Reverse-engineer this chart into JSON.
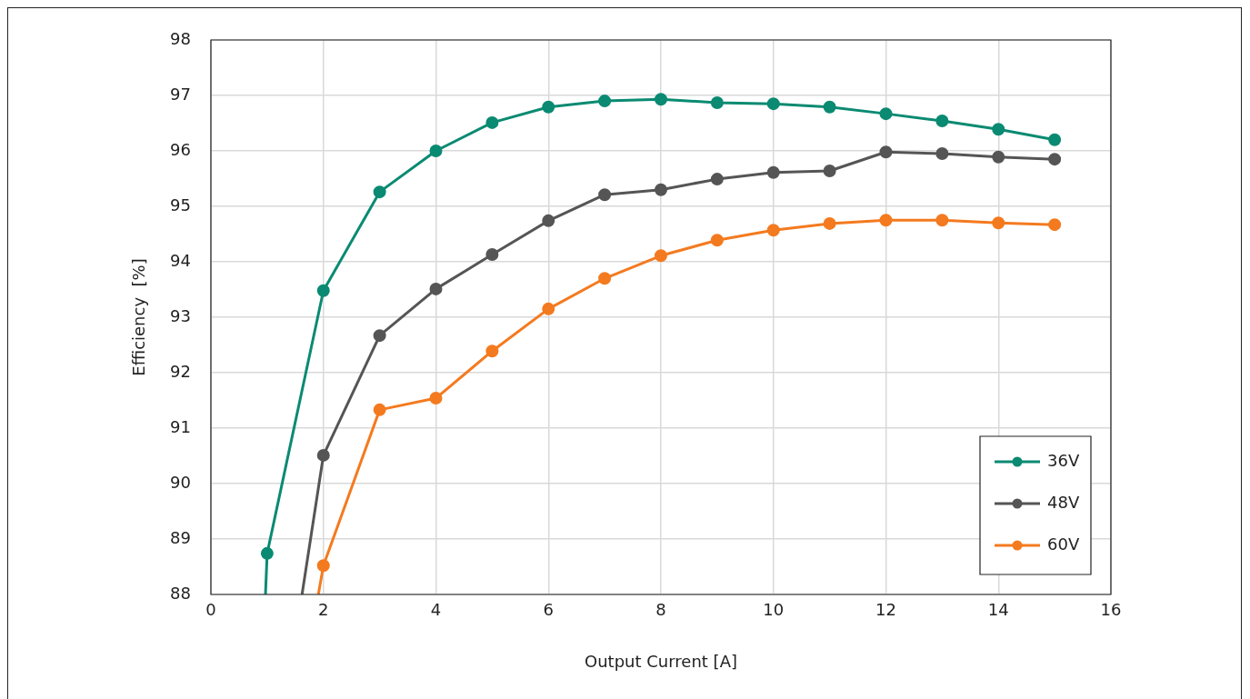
{
  "chart_data": {
    "type": "line",
    "xlabel": "Output Current [A]",
    "ylabel": "Efficiency  [%]",
    "xlim": [
      0,
      16
    ],
    "xticks": [
      0,
      2,
      4,
      6,
      8,
      10,
      12,
      14,
      16
    ],
    "ylim": [
      88,
      98
    ],
    "yticks": [
      88,
      89,
      90,
      91,
      92,
      93,
      94,
      95,
      96,
      97,
      98
    ],
    "grid": true,
    "legend": "bottom right",
    "marker": "circle",
    "line_style": "solid",
    "series": [
      {
        "name": "36V",
        "color": "#0a8a72",
        "x": [
          0.97,
          1,
          2,
          3,
          4,
          5,
          6,
          7,
          8,
          9,
          10,
          11,
          12,
          13,
          14,
          15
        ],
        "values": [
          88,
          88.74,
          93.48,
          95.26,
          96.0,
          96.51,
          96.79,
          96.9,
          96.93,
          96.87,
          96.85,
          96.79,
          96.67,
          96.54,
          96.39,
          96.2
        ]
      },
      {
        "name": "48V",
        "color": "#555555",
        "x": [
          1.62,
          2,
          3,
          4,
          5,
          6,
          7,
          8,
          9,
          10,
          11,
          12,
          13,
          14,
          15
        ],
        "values": [
          88,
          90.51,
          92.67,
          93.51,
          94.13,
          94.74,
          95.21,
          95.3,
          95.49,
          95.61,
          95.64,
          95.98,
          95.95,
          95.89,
          95.85
        ]
      },
      {
        "name": "60V",
        "color": "#f47a1f",
        "x": [
          1.91,
          2,
          3,
          4,
          5,
          6,
          7,
          8,
          9,
          10,
          11,
          12,
          13,
          14,
          15
        ],
        "values": [
          88,
          88.52,
          91.33,
          91.54,
          92.39,
          93.15,
          93.7,
          94.11,
          94.39,
          94.57,
          94.69,
          94.75,
          94.75,
          94.7,
          94.67
        ]
      }
    ]
  }
}
